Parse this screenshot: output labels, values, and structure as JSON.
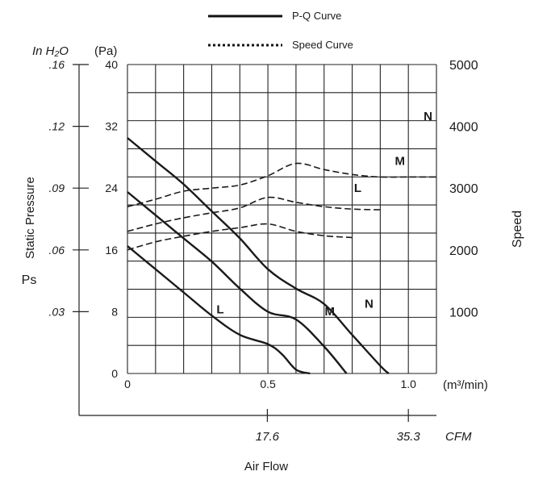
{
  "legend": {
    "pq_label": "P-Q Curve",
    "speed_label": "Speed Curve"
  },
  "left_axis": {
    "inh2o_title": "In H₂O",
    "pa_title": "(Pa)",
    "label": "Static Pressure",
    "sub_label": "Ps",
    "inh2o_ticks": [
      ".16",
      ".12",
      ".09",
      ".06",
      ".03"
    ],
    "pa_ticks": [
      "40",
      "32",
      "24",
      "16",
      "8",
      "0"
    ]
  },
  "right_axis": {
    "label": "Speed",
    "ticks": [
      "5000",
      "4000",
      "3000",
      "2000",
      "1000"
    ]
  },
  "bottom_axis": {
    "m3_ticks": [
      "0",
      "0.5",
      "1.0"
    ],
    "m3_unit": "(m³/min)",
    "cfm_ticks": [
      "17.6",
      "35.3"
    ],
    "cfm_unit": "CFM",
    "label": "Air Flow"
  },
  "chart_data": {
    "type": "line",
    "xlabel": "Air Flow",
    "x_unit": "m³/min",
    "x_secondary_unit": "CFM",
    "ylabel": "Static Pressure Ps",
    "y_unit": "Pa",
    "y_secondary_unit": "In H₂O",
    "y2label": "Speed",
    "xlim": [
      0,
      1.1
    ],
    "ylim": [
      0,
      40
    ],
    "y2lim": [
      0,
      5000
    ],
    "grid": true,
    "legend_position": "top",
    "series": [
      {
        "name": "N",
        "group": "P-Q Curve",
        "style": "solid",
        "x": [
          0,
          0.1,
          0.2,
          0.3,
          0.4,
          0.5,
          0.6,
          0.7,
          0.8,
          0.9,
          0.93
        ],
        "y": [
          30.5,
          27.5,
          24.5,
          21,
          17.5,
          13.5,
          11,
          9,
          5,
          1,
          0
        ]
      },
      {
        "name": "M",
        "group": "P-Q Curve",
        "style": "solid",
        "x": [
          0,
          0.1,
          0.2,
          0.3,
          0.4,
          0.5,
          0.6,
          0.7,
          0.78
        ],
        "y": [
          23.5,
          20.5,
          17.5,
          14.5,
          11,
          8,
          7,
          3.5,
          0
        ]
      },
      {
        "name": "L",
        "group": "P-Q Curve",
        "style": "solid",
        "x": [
          0,
          0.1,
          0.2,
          0.3,
          0.4,
          0.5,
          0.55,
          0.6,
          0.65
        ],
        "y": [
          16.5,
          13.5,
          10.5,
          7.5,
          5,
          3.8,
          2.5,
          0.5,
          0
        ]
      },
      {
        "name": "N",
        "group": "Speed Curve",
        "style": "dashed",
        "x": [
          0,
          0.1,
          0.2,
          0.3,
          0.4,
          0.5,
          0.6,
          0.7,
          0.8,
          0.9,
          1.0,
          1.1
        ],
        "y": [
          2700,
          2820,
          2950,
          3000,
          3050,
          3200,
          3400,
          3300,
          3220,
          3180,
          3180,
          3180
        ]
      },
      {
        "name": "M",
        "group": "Speed Curve",
        "style": "dashed",
        "x": [
          0,
          0.1,
          0.2,
          0.3,
          0.4,
          0.5,
          0.6,
          0.7,
          0.8,
          0.9
        ],
        "y": [
          2300,
          2420,
          2520,
          2600,
          2680,
          2850,
          2770,
          2700,
          2660,
          2650
        ]
      },
      {
        "name": "L",
        "group": "Speed Curve",
        "style": "dashed",
        "x": [
          0,
          0.1,
          0.2,
          0.3,
          0.4,
          0.5,
          0.6,
          0.7,
          0.8
        ],
        "y": [
          2000,
          2130,
          2220,
          2300,
          2360,
          2420,
          2300,
          2230,
          2200
        ]
      }
    ],
    "curve_labels": [
      {
        "text": "N",
        "x": 1.07,
        "y": 32.8
      },
      {
        "text": "M",
        "x": 0.97,
        "y": 27.0
      },
      {
        "text": "L",
        "x": 0.82,
        "y": 23.5
      },
      {
        "text": "N",
        "x": 0.86,
        "y": 8.5
      },
      {
        "text": "M",
        "x": 0.72,
        "y": 7.5
      },
      {
        "text": "L",
        "x": 0.33,
        "y": 7.8
      }
    ]
  }
}
